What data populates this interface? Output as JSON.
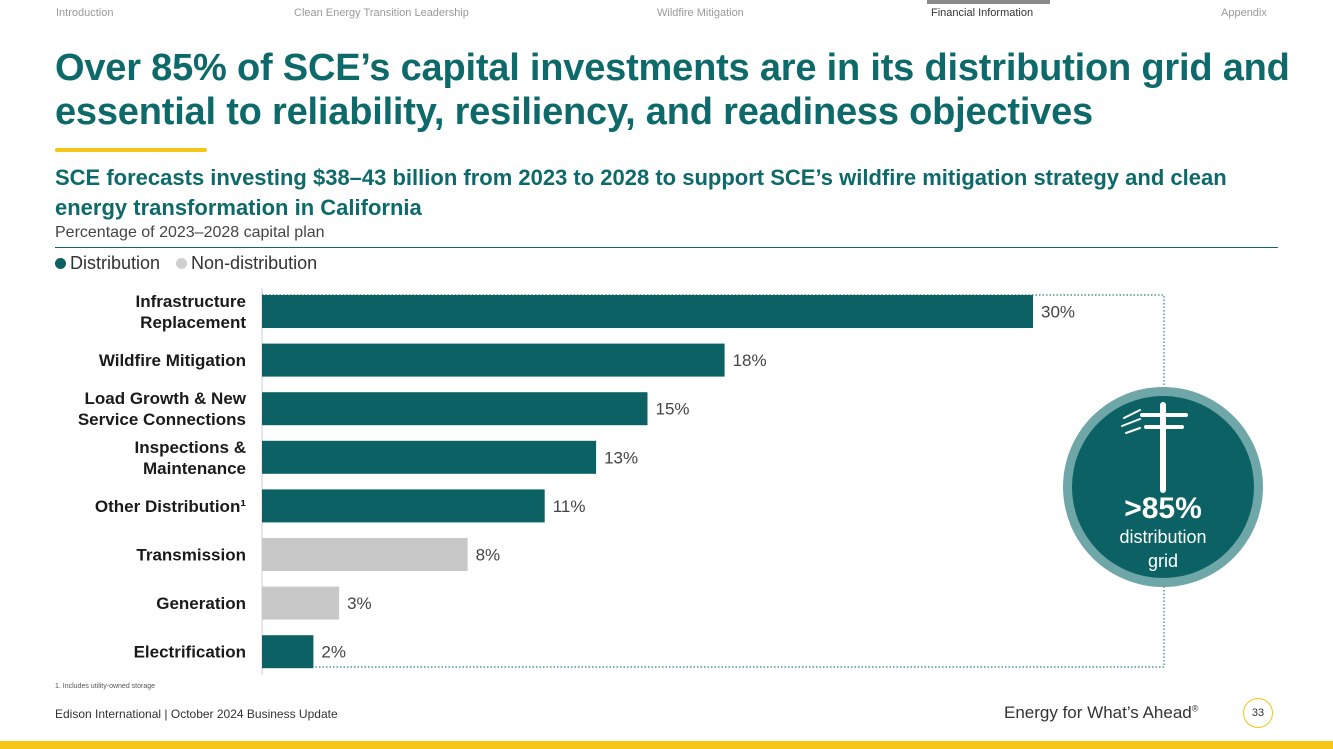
{
  "nav": {
    "items": [
      "Introduction",
      "Clean Energy Transition Leadership",
      "Wildfire Mitigation",
      "Financial Information",
      "Appendix"
    ],
    "active": "Financial Information"
  },
  "title": "Over 85% of SCE’s capital investments are in its distribution grid and essential to reliability, resiliency, and readiness objectives",
  "subtitle": "SCE forecasts investing $38–43 billion from 2023 to 2028 to support SCE’s wildfire mitigation strategy and clean energy transformation in California",
  "caption": "Percentage of 2023–2028 capital plan",
  "legend": {
    "distribution": "Distribution",
    "non_distribution": "Non-distribution"
  },
  "colors": {
    "distribution": "#0b6163",
    "non_distribution": "#c8c8c8",
    "accent": "#f5c518",
    "brand": "#0e6a6a"
  },
  "chart_data": {
    "type": "bar",
    "orientation": "horizontal",
    "categories": [
      [
        "Infrastructure",
        "Replacement"
      ],
      [
        "Wildfire Mitigation"
      ],
      [
        "Load Growth & New",
        "Service Connections"
      ],
      [
        "Inspections &",
        "Maintenance"
      ],
      [
        "Other Distribution¹"
      ],
      [
        "Transmission"
      ],
      [
        "Generation"
      ],
      [
        "Electrification"
      ]
    ],
    "values": [
      30,
      18,
      15,
      13,
      11,
      8,
      3,
      2
    ],
    "labels": [
      "30%",
      "18%",
      "15%",
      "13%",
      "11%",
      "8%",
      "3%",
      "2%"
    ],
    "group": [
      "distribution",
      "distribution",
      "distribution",
      "distribution",
      "distribution",
      "non_distribution",
      "non_distribution",
      "distribution"
    ],
    "xlim": [
      0,
      30
    ],
    "unit": "%"
  },
  "badge": {
    "icon": "power-pole-icon",
    "value": ">85%",
    "line1": "distribution",
    "line2": "grid"
  },
  "footnote": "1.   Includes utility-owned storage",
  "footer": {
    "left": "Edison International | October 2024 Business Update",
    "tagline": "Energy for What’s Ahead",
    "tagline_mark": "®",
    "page": "33"
  }
}
